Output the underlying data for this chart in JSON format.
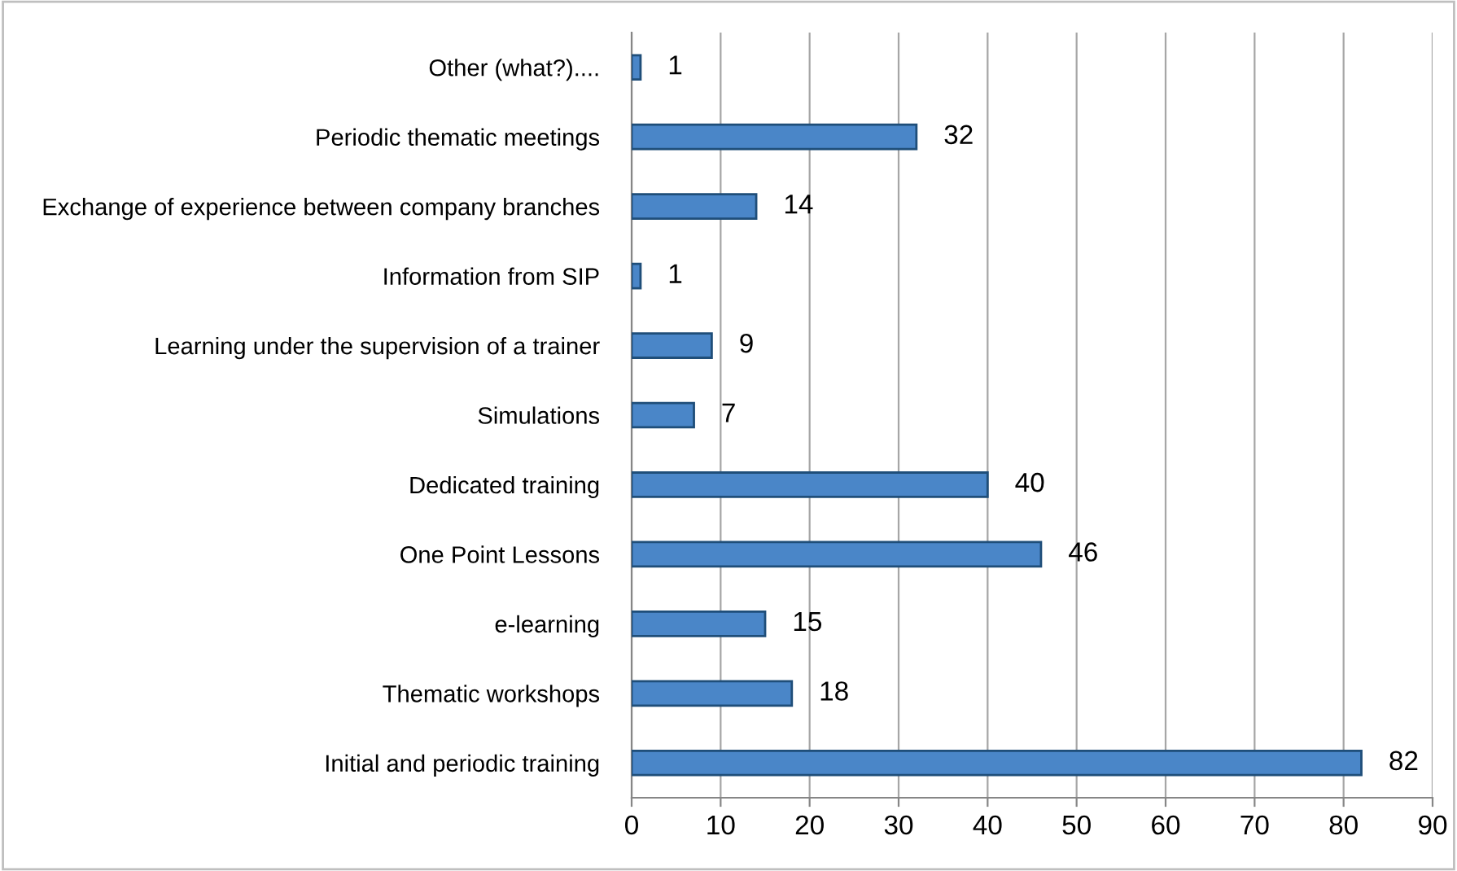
{
  "chart_data": {
    "type": "bar",
    "orientation": "horizontal",
    "categories": [
      "Other (what?)....",
      "Periodic thematic meetings",
      "Exchange of experience between company branches",
      "Information from SIP",
      "Learning under the supervision of a trainer",
      "Simulations",
      "Dedicated training",
      "One Point Lessons",
      "e-learning",
      "Thematic workshops",
      "Initial and periodic training"
    ],
    "values": [
      1,
      32,
      14,
      1,
      9,
      7,
      40,
      46,
      15,
      18,
      82
    ],
    "color": "#4a86c8",
    "xlim": [
      0,
      90
    ],
    "xticks": [
      0,
      10,
      20,
      30,
      40,
      50,
      60,
      70,
      80,
      90
    ],
    "grid": "x",
    "data_labels": true
  }
}
